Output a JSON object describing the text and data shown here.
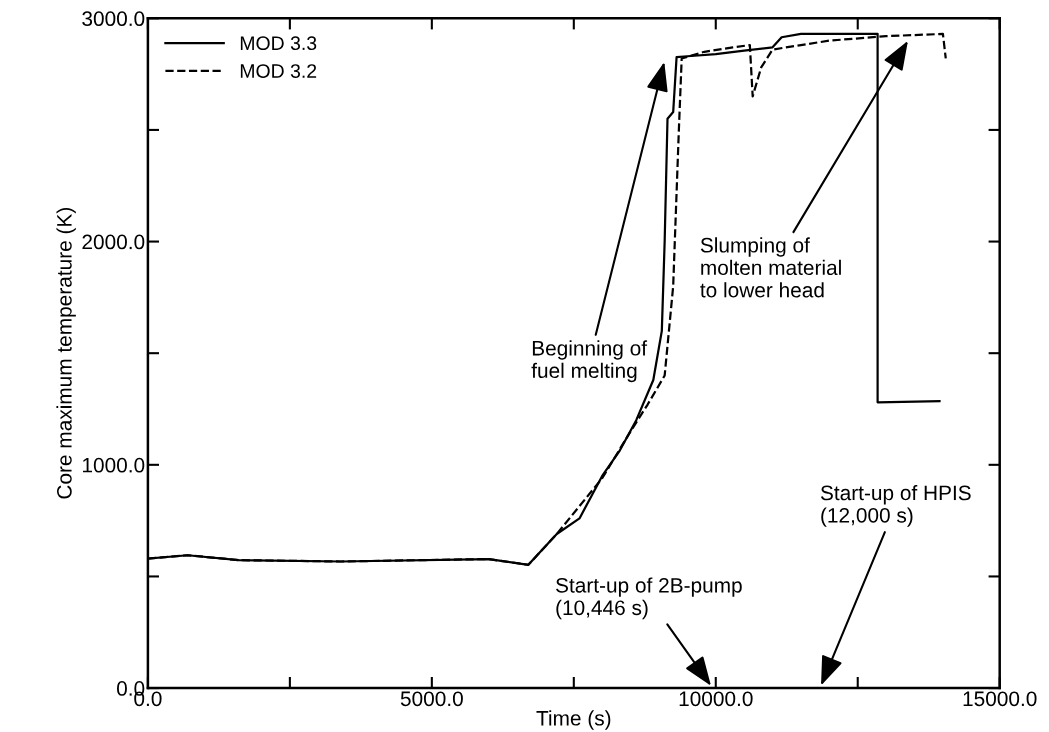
{
  "chart_data": {
    "type": "line",
    "xlabel": "Time (s)",
    "ylabel": "Core maximum temperature (K)",
    "xlim": [
      0,
      15000
    ],
    "ylim": [
      0,
      3000
    ],
    "xticks": [
      {
        "value": 0,
        "label": "0.0"
      },
      {
        "value": 2500,
        "label": null
      },
      {
        "value": 5000,
        "label": "5000.0"
      },
      {
        "value": 7500,
        "label": null
      },
      {
        "value": 10000,
        "label": "10000.0"
      },
      {
        "value": 12500,
        "label": null
      },
      {
        "value": 15000,
        "label": "15000.0"
      }
    ],
    "yticks": [
      {
        "value": 0,
        "label": "0.0"
      },
      {
        "value": 500,
        "label": null
      },
      {
        "value": 1000,
        "label": "1000.0"
      },
      {
        "value": 1500,
        "label": null
      },
      {
        "value": 2000,
        "label": "2000.0"
      },
      {
        "value": 2500,
        "label": null
      },
      {
        "value": 3000,
        "label": "3000.0"
      }
    ],
    "grid": false,
    "legend": "top left",
    "series": [
      {
        "name": "MOD 3.3",
        "color": "#000000",
        "line_style": "solid",
        "x": [
          0,
          700,
          1600,
          3400,
          6000,
          6700,
          7200,
          7600,
          8000,
          8300,
          8600,
          8900,
          9050,
          9100,
          9150,
          9250,
          9310,
          9500,
          10000,
          10500,
          11000,
          11160,
          11500,
          12850,
          12850,
          13940
        ],
        "values": [
          580,
          595,
          573,
          567,
          578,
          552,
          690,
          760,
          950,
          1060,
          1200,
          1380,
          1600,
          2000,
          2550,
          2580,
          2826,
          2830,
          2840,
          2855,
          2870,
          2915,
          2930,
          2930,
          1280,
          1285
        ]
      },
      {
        "name": "MOD 3.2",
        "color": "#000000",
        "line_style": "dashed",
        "x": [
          0,
          700,
          1600,
          3400,
          6000,
          6700,
          7200,
          8000,
          8500,
          8800,
          9100,
          9250,
          9350,
          9400,
          9800,
          10300,
          10600,
          10650,
          10800,
          11000,
          11500,
          12000,
          13000,
          14000,
          14050
        ],
        "values": [
          580,
          595,
          573,
          567,
          578,
          552,
          690,
          940,
          1150,
          1270,
          1400,
          1800,
          2500,
          2820,
          2850,
          2870,
          2880,
          2650,
          2780,
          2860,
          2880,
          2900,
          2920,
          2930,
          2820
        ]
      }
    ],
    "annotations": [
      "Beginning of\nfuel melting",
      "Slumping of\nmolten material\nto lower head",
      "Start-up of HPIS\n(12,000 s)",
      "Start-up of 2B-pump\n(10,446 s)"
    ]
  }
}
